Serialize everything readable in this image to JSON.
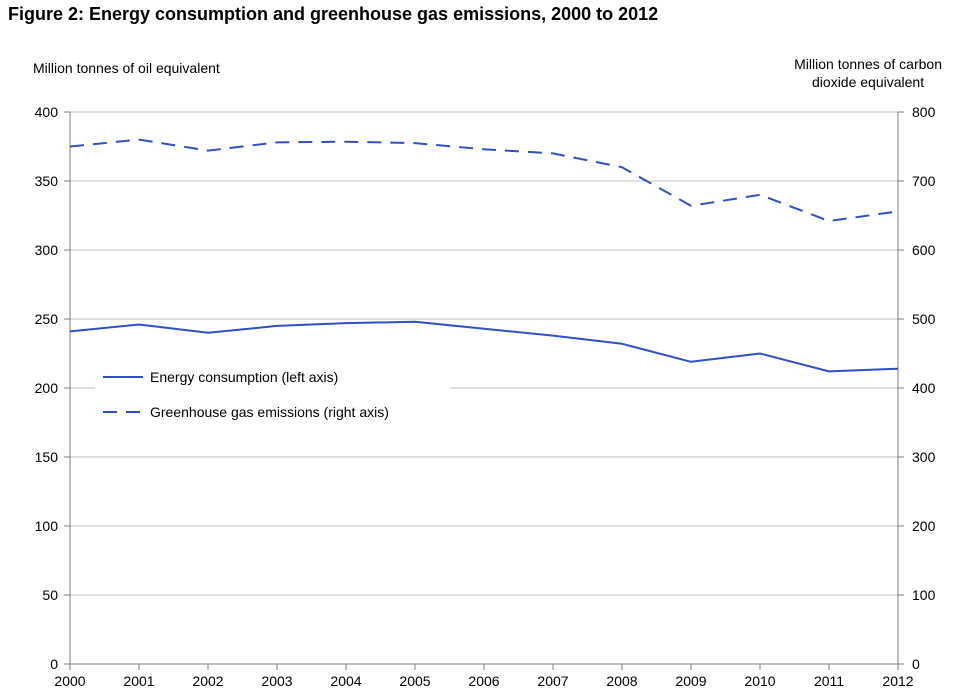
{
  "chart_data": {
    "type": "line",
    "title": "Figure 2: Energy consumption and greenhouse gas emissions, 2000 to 2012",
    "ylabel_left": "Million tonnes of oil equivalent",
    "ylabel_right_lines": [
      "Million tonnes of carbon",
      "dioxide equivalent"
    ],
    "x": [
      "2000",
      "2001",
      "2002",
      "2003",
      "2004",
      "2005",
      "2006",
      "2007",
      "2008",
      "2009",
      "2010",
      "2011",
      "2012"
    ],
    "ylim_left": [
      0,
      400
    ],
    "ylim_right": [
      0,
      800
    ],
    "yticks_left": [
      0,
      50,
      100,
      150,
      200,
      250,
      300,
      350,
      400
    ],
    "yticks_right": [
      0,
      100,
      200,
      300,
      400,
      500,
      600,
      700,
      800
    ],
    "grid": true,
    "legend_position": "left-middle",
    "series": [
      {
        "name": "Energy consumption (left axis)",
        "axis": "left",
        "style": "solid",
        "color": "#3050c8",
        "values": [
          241,
          246,
          240,
          245,
          247,
          248,
          243,
          238,
          232,
          219,
          225,
          212,
          214
        ]
      },
      {
        "name": "Greenhouse gas emissions (right axis)",
        "axis": "right",
        "style": "dashed",
        "color": "#3050c8",
        "values": [
          750,
          760,
          744,
          756,
          757,
          755,
          746,
          740,
          720,
          664,
          680,
          642,
          656
        ]
      }
    ]
  }
}
